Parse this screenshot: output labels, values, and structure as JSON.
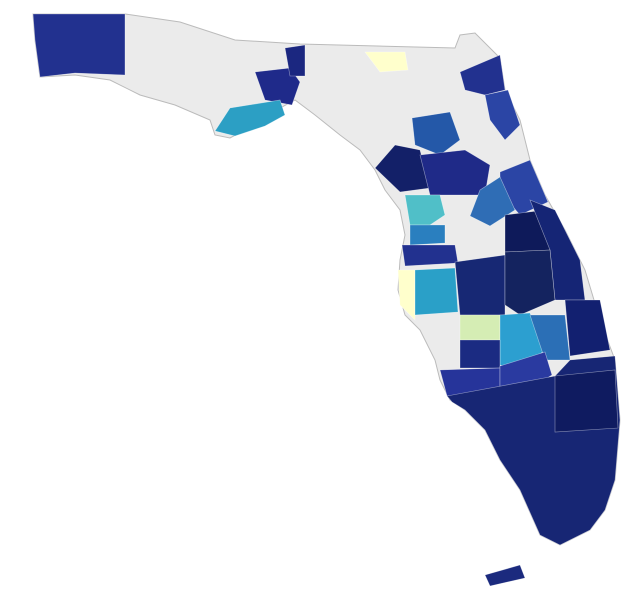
{
  "map": {
    "base_color": "#ebebeb",
    "border_color": "#ffffff",
    "regions": [
      {
        "color": "#22318f"
      },
      {
        "color": "#1f2a8a"
      },
      {
        "color": "#1b2780"
      },
      {
        "color": "#2c9fc4"
      },
      {
        "color": "#ffffcc"
      },
      {
        "color": "#22318f"
      },
      {
        "color": "#2b45a5"
      },
      {
        "color": "#2458a8"
      },
      {
        "color": "#132068"
      },
      {
        "color": "#1f2a88"
      },
      {
        "color": "#2b45a5"
      },
      {
        "color": "#2f6db5"
      },
      {
        "color": "#50bfc8"
      },
      {
        "color": "#2a7fbf"
      },
      {
        "color": "#22318f"
      },
      {
        "color": "#0e1a5a"
      },
      {
        "color": "#152575"
      },
      {
        "color": "#172874"
      },
      {
        "color": "#14235f"
      },
      {
        "color": "#ffffcc"
      },
      {
        "color": "#2aa0c8"
      },
      {
        "color": "#d5edb4"
      },
      {
        "color": "#2c9fd0"
      },
      {
        "color": "#2b6fb6"
      },
      {
        "color": "#122070"
      },
      {
        "color": "#1b2b82"
      },
      {
        "color": "#26349a"
      },
      {
        "color": "#2a3aa0"
      },
      {
        "color": "#172674"
      },
      {
        "color": "#0f1b60"
      },
      {
        "color": "#1b2a7e"
      }
    ]
  }
}
